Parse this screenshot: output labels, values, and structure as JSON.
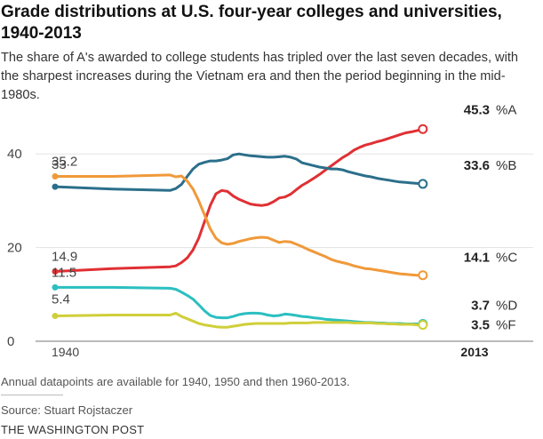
{
  "chart_data": {
    "type": "line",
    "title": "Grade distributions at U.S. four-year colleges and universities, 1940-2013",
    "subtitle": "The share of A's awarded to college students has tripled over the last seven decades, with the sharpest increases during the Vietnam era and then the period beginning in the mid-1980s.",
    "xlabel": "",
    "ylabel": "",
    "xlim": [
      1940,
      2013
    ],
    "ylim": [
      0,
      45
    ],
    "y_ticks": [
      0,
      20,
      40
    ],
    "x_tick_labels": [
      "1940",
      "2013"
    ],
    "grid": true,
    "legend": "inline labels at line ends",
    "series": [
      {
        "name": "%A",
        "color": "#e03033",
        "start_label": "14.9",
        "end_label": "45.3",
        "points": [
          [
            1940,
            14.9
          ],
          [
            1950,
            15.5
          ],
          [
            1960,
            15.9
          ],
          [
            1961,
            16.1
          ],
          [
            1962,
            16.8
          ],
          [
            1963,
            17.8
          ],
          [
            1964,
            19.5
          ],
          [
            1965,
            22.0
          ],
          [
            1966,
            25.5
          ],
          [
            1967,
            29.0
          ],
          [
            1968,
            31.5
          ],
          [
            1969,
            32.2
          ],
          [
            1970,
            32.0
          ],
          [
            1971,
            31.0
          ],
          [
            1972,
            30.3
          ],
          [
            1973,
            29.8
          ],
          [
            1974,
            29.3
          ],
          [
            1975,
            29.1
          ],
          [
            1976,
            29.0
          ],
          [
            1977,
            29.2
          ],
          [
            1978,
            29.8
          ],
          [
            1979,
            30.6
          ],
          [
            1980,
            30.8
          ],
          [
            1981,
            31.4
          ],
          [
            1982,
            32.4
          ],
          [
            1983,
            33.3
          ],
          [
            1984,
            34.0
          ],
          [
            1985,
            34.8
          ],
          [
            1986,
            35.6
          ],
          [
            1987,
            36.5
          ],
          [
            1988,
            37.4
          ],
          [
            1989,
            38.3
          ],
          [
            1990,
            39.2
          ],
          [
            1991,
            39.9
          ],
          [
            1992,
            40.8
          ],
          [
            1993,
            41.4
          ],
          [
            1994,
            41.9
          ],
          [
            1995,
            42.2
          ],
          [
            1996,
            42.6
          ],
          [
            1997,
            42.9
          ],
          [
            1998,
            43.3
          ],
          [
            1999,
            43.7
          ],
          [
            2000,
            44.1
          ],
          [
            2001,
            44.5
          ],
          [
            2002,
            44.7
          ],
          [
            2003,
            45.0
          ],
          [
            2004,
            45.3
          ]
        ]
      },
      {
        "name": "%B",
        "color": "#2b6f8a",
        "start_label": "33",
        "end_label": "33.6",
        "points": [
          [
            1940,
            33.0
          ],
          [
            1950,
            32.5
          ],
          [
            1960,
            32.2
          ],
          [
            1961,
            32.6
          ],
          [
            1962,
            33.5
          ],
          [
            1963,
            35.2
          ],
          [
            1964,
            36.8
          ],
          [
            1965,
            37.8
          ],
          [
            1966,
            38.2
          ],
          [
            1967,
            38.5
          ],
          [
            1968,
            38.5
          ],
          [
            1969,
            38.7
          ],
          [
            1970,
            39.0
          ],
          [
            1971,
            39.8
          ],
          [
            1972,
            40.0
          ],
          [
            1973,
            39.8
          ],
          [
            1974,
            39.6
          ],
          [
            1975,
            39.5
          ],
          [
            1976,
            39.4
          ],
          [
            1977,
            39.3
          ],
          [
            1978,
            39.3
          ],
          [
            1979,
            39.4
          ],
          [
            1980,
            39.5
          ],
          [
            1981,
            39.3
          ],
          [
            1982,
            38.9
          ],
          [
            1983,
            38.1
          ],
          [
            1984,
            37.8
          ],
          [
            1985,
            37.5
          ],
          [
            1986,
            37.2
          ],
          [
            1987,
            37.0
          ],
          [
            1988,
            36.8
          ],
          [
            1989,
            36.8
          ],
          [
            1990,
            36.6
          ],
          [
            1991,
            36.2
          ],
          [
            1992,
            35.9
          ],
          [
            1993,
            35.6
          ],
          [
            1994,
            35.3
          ],
          [
            1995,
            35.1
          ],
          [
            1996,
            34.8
          ],
          [
            1997,
            34.6
          ],
          [
            1998,
            34.4
          ],
          [
            1999,
            34.2
          ],
          [
            2000,
            34.0
          ],
          [
            2001,
            33.9
          ],
          [
            2002,
            33.8
          ],
          [
            2003,
            33.7
          ],
          [
            2004,
            33.6
          ]
        ]
      },
      {
        "name": "%C",
        "color": "#f0993a",
        "start_label": "35.2",
        "end_label": "14.1",
        "points": [
          [
            1940,
            35.2
          ],
          [
            1950,
            35.2
          ],
          [
            1960,
            35.5
          ],
          [
            1961,
            35.1
          ],
          [
            1962,
            35.3
          ],
          [
            1963,
            34.2
          ],
          [
            1964,
            32.5
          ],
          [
            1965,
            30.0
          ],
          [
            1966,
            27.0
          ],
          [
            1967,
            24.0
          ],
          [
            1968,
            22.0
          ],
          [
            1969,
            21.0
          ],
          [
            1970,
            20.7
          ],
          [
            1971,
            20.9
          ],
          [
            1972,
            21.3
          ],
          [
            1973,
            21.6
          ],
          [
            1974,
            21.9
          ],
          [
            1975,
            22.1
          ],
          [
            1976,
            22.2
          ],
          [
            1977,
            22.1
          ],
          [
            1978,
            21.6
          ],
          [
            1979,
            21.1
          ],
          [
            1980,
            21.3
          ],
          [
            1981,
            21.2
          ],
          [
            1982,
            20.7
          ],
          [
            1983,
            20.2
          ],
          [
            1984,
            19.6
          ],
          [
            1985,
            19.1
          ],
          [
            1986,
            18.6
          ],
          [
            1987,
            18.1
          ],
          [
            1988,
            17.5
          ],
          [
            1989,
            17.1
          ],
          [
            1990,
            16.8
          ],
          [
            1991,
            16.5
          ],
          [
            1992,
            16.1
          ],
          [
            1993,
            15.8
          ],
          [
            1994,
            15.5
          ],
          [
            1995,
            15.4
          ],
          [
            1996,
            15.2
          ],
          [
            1997,
            15.0
          ],
          [
            1998,
            14.8
          ],
          [
            1999,
            14.6
          ],
          [
            2000,
            14.4
          ],
          [
            2001,
            14.3
          ],
          [
            2002,
            14.2
          ],
          [
            2003,
            14.1
          ],
          [
            2004,
            14.1
          ]
        ]
      },
      {
        "name": "%D",
        "color": "#2bbfc0",
        "start_label": "11.5",
        "end_label": "3.7",
        "points": [
          [
            1940,
            11.5
          ],
          [
            1950,
            11.5
          ],
          [
            1960,
            11.3
          ],
          [
            1961,
            11.1
          ],
          [
            1962,
            10.5
          ],
          [
            1963,
            9.8
          ],
          [
            1964,
            9.0
          ],
          [
            1965,
            7.8
          ],
          [
            1966,
            6.5
          ],
          [
            1967,
            5.5
          ],
          [
            1968,
            5.1
          ],
          [
            1969,
            5.0
          ],
          [
            1970,
            5.0
          ],
          [
            1971,
            5.3
          ],
          [
            1972,
            5.7
          ],
          [
            1973,
            5.9
          ],
          [
            1974,
            6.0
          ],
          [
            1975,
            6.0
          ],
          [
            1976,
            5.9
          ],
          [
            1977,
            5.6
          ],
          [
            1978,
            5.4
          ],
          [
            1979,
            5.5
          ],
          [
            1980,
            5.8
          ],
          [
            1981,
            5.7
          ],
          [
            1982,
            5.5
          ],
          [
            1983,
            5.3
          ],
          [
            1984,
            5.2
          ],
          [
            1985,
            5.0
          ],
          [
            1986,
            4.9
          ],
          [
            1987,
            4.7
          ],
          [
            1988,
            4.6
          ],
          [
            1989,
            4.5
          ],
          [
            1990,
            4.4
          ],
          [
            1991,
            4.3
          ],
          [
            1992,
            4.2
          ],
          [
            1993,
            4.1
          ],
          [
            1994,
            4.0
          ],
          [
            1995,
            4.0
          ],
          [
            1996,
            3.9
          ],
          [
            1997,
            3.9
          ],
          [
            1998,
            3.8
          ],
          [
            1999,
            3.8
          ],
          [
            2000,
            3.8
          ],
          [
            2001,
            3.7
          ],
          [
            2002,
            3.7
          ],
          [
            2003,
            3.7
          ],
          [
            2004,
            3.7
          ]
        ]
      },
      {
        "name": "%F",
        "color": "#cfcf3a",
        "start_label": "5.4",
        "end_label": "3.5",
        "points": [
          [
            1940,
            5.4
          ],
          [
            1950,
            5.6
          ],
          [
            1960,
            5.6
          ],
          [
            1961,
            6.0
          ],
          [
            1962,
            5.3
          ],
          [
            1963,
            4.8
          ],
          [
            1964,
            4.3
          ],
          [
            1965,
            3.8
          ],
          [
            1966,
            3.5
          ],
          [
            1967,
            3.3
          ],
          [
            1968,
            3.1
          ],
          [
            1969,
            3.0
          ],
          [
            1970,
            3.0
          ],
          [
            1971,
            3.2
          ],
          [
            1972,
            3.4
          ],
          [
            1973,
            3.6
          ],
          [
            1974,
            3.7
          ],
          [
            1975,
            3.8
          ],
          [
            1976,
            3.8
          ],
          [
            1977,
            3.8
          ],
          [
            1978,
            3.8
          ],
          [
            1979,
            3.8
          ],
          [
            1980,
            3.8
          ],
          [
            1981,
            3.9
          ],
          [
            1982,
            3.9
          ],
          [
            1983,
            3.9
          ],
          [
            1984,
            3.9
          ],
          [
            1985,
            4.0
          ],
          [
            1986,
            4.0
          ],
          [
            1987,
            4.0
          ],
          [
            1988,
            4.0
          ],
          [
            1989,
            4.0
          ],
          [
            1990,
            4.0
          ],
          [
            1991,
            4.0
          ],
          [
            1992,
            3.9
          ],
          [
            1993,
            3.9
          ],
          [
            1994,
            3.9
          ],
          [
            1995,
            3.9
          ],
          [
            1996,
            3.8
          ],
          [
            1997,
            3.8
          ],
          [
            1998,
            3.7
          ],
          [
            1999,
            3.7
          ],
          [
            2000,
            3.6
          ],
          [
            2001,
            3.6
          ],
          [
            2002,
            3.6
          ],
          [
            2003,
            3.5
          ],
          [
            2004,
            3.5
          ]
        ]
      }
    ],
    "note": "Annual datapoints are available for 1940, 1950 and then 1960-2013.",
    "source": "Source: Stuart Rojstaczer",
    "credit": "THE WASHINGTON POST"
  }
}
